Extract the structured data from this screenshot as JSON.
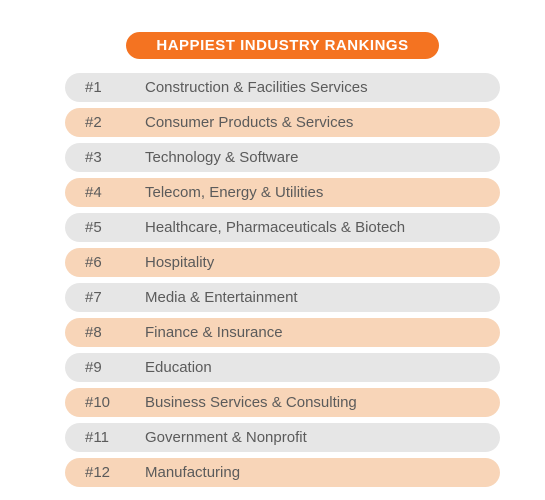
{
  "title": "HAPPIEST INDUSTRY RANKINGS",
  "colors": {
    "title_bg": "#f47321",
    "title_text": "#ffffff",
    "row_odd_bg": "#e6e6e6",
    "row_even_bg": "#f8d5b8",
    "text": "#5b5b5b",
    "page_bg": "#ffffff"
  },
  "typography": {
    "title_fontsize": 15,
    "row_fontsize": 15,
    "title_weight": "bold",
    "font_family": "Helvetica"
  },
  "rankings": [
    {
      "rank": "#1",
      "industry": "Construction & Facilities Services"
    },
    {
      "rank": "#2",
      "industry": "Consumer Products & Services"
    },
    {
      "rank": "#3",
      "industry": "Technology & Software"
    },
    {
      "rank": "#4",
      "industry": "Telecom, Energy & Utilities"
    },
    {
      "rank": "#5",
      "industry": "Healthcare, Pharmaceuticals & Biotech"
    },
    {
      "rank": "#6",
      "industry": "Hospitality"
    },
    {
      "rank": "#7",
      "industry": "Media & Entertainment"
    },
    {
      "rank": "#8",
      "industry": "Finance & Insurance"
    },
    {
      "rank": "#9",
      "industry": "Education"
    },
    {
      "rank": "#10",
      "industry": "Business Services & Consulting"
    },
    {
      "rank": "#11",
      "industry": "Government & Nonprofit"
    },
    {
      "rank": "#12",
      "industry": "Manufacturing"
    }
  ]
}
